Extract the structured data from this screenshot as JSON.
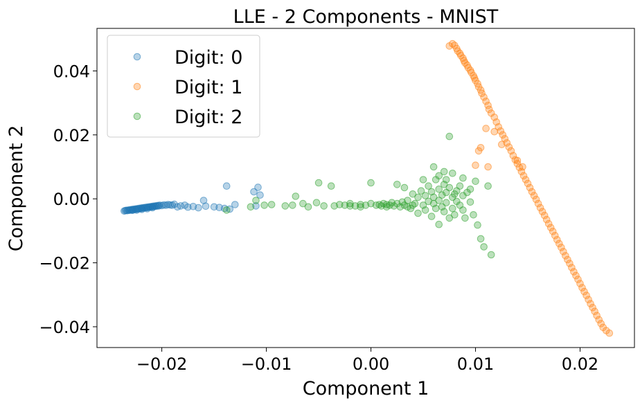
{
  "chart_data": {
    "type": "scatter",
    "title": "LLE - 2 Components - MNIST",
    "xlabel": "Component 1",
    "ylabel": "Component 2",
    "xlim": [
      -0.0262,
      0.0252
    ],
    "ylim": [
      -0.0465,
      0.0533
    ],
    "xticks": [
      -0.02,
      -0.01,
      0.0,
      0.01,
      0.02
    ],
    "xtick_labels": [
      "−0.02",
      "−0.01",
      "0.00",
      "0.01",
      "0.02"
    ],
    "yticks": [
      -0.04,
      -0.02,
      0.0,
      0.02,
      0.04
    ],
    "ytick_labels": [
      "−0.04",
      "−0.02",
      "0.00",
      "0.02",
      "0.04"
    ],
    "grid": false,
    "legend_position": "top-left",
    "series": [
      {
        "name": "Digit: 0",
        "color": "#1f77b4",
        "points": [
          [
            -0.0236,
            -0.0038
          ],
          [
            -0.0235,
            -0.0037
          ],
          [
            -0.0234,
            -0.0036
          ],
          [
            -0.0233,
            -0.0037
          ],
          [
            -0.0232,
            -0.0035
          ],
          [
            -0.0231,
            -0.0036
          ],
          [
            -0.023,
            -0.0034
          ],
          [
            -0.0229,
            -0.0035
          ],
          [
            -0.0228,
            -0.0033
          ],
          [
            -0.0227,
            -0.0034
          ],
          [
            -0.0226,
            -0.0032
          ],
          [
            -0.0225,
            -0.0033
          ],
          [
            -0.0224,
            -0.0031
          ],
          [
            -0.0223,
            -0.0032
          ],
          [
            -0.0222,
            -0.003
          ],
          [
            -0.0221,
            -0.0031
          ],
          [
            -0.022,
            -0.0029
          ],
          [
            -0.0219,
            -0.003
          ],
          [
            -0.0218,
            -0.0028
          ],
          [
            -0.0217,
            -0.0029
          ],
          [
            -0.0216,
            -0.0027
          ],
          [
            -0.0215,
            -0.0028
          ],
          [
            -0.0214,
            -0.0026
          ],
          [
            -0.0213,
            -0.0027
          ],
          [
            -0.0212,
            -0.0025
          ],
          [
            -0.0211,
            -0.0026
          ],
          [
            -0.021,
            -0.0024
          ],
          [
            -0.0209,
            -0.0025
          ],
          [
            -0.0208,
            -0.0023
          ],
          [
            -0.0207,
            -0.0024
          ],
          [
            -0.0206,
            -0.0022
          ],
          [
            -0.0205,
            -0.0023
          ],
          [
            -0.0204,
            -0.0021
          ],
          [
            -0.0203,
            -0.0022
          ],
          [
            -0.0202,
            -0.002
          ],
          [
            -0.02,
            -0.0021
          ],
          [
            -0.0198,
            -0.0019
          ],
          [
            -0.0196,
            -0.002
          ],
          [
            -0.0194,
            -0.0018
          ],
          [
            -0.0192,
            -0.0019
          ],
          [
            -0.019,
            -0.002
          ],
          [
            -0.0188,
            -0.0017
          ],
          [
            -0.0185,
            -0.0025
          ],
          [
            -0.0182,
            -0.0022
          ],
          [
            -0.0178,
            -0.002
          ],
          [
            -0.0175,
            -0.0026
          ],
          [
            -0.017,
            -0.0024
          ],
          [
            -0.0165,
            -0.0028
          ],
          [
            -0.016,
            -0.0005
          ],
          [
            -0.0158,
            -0.0023
          ],
          [
            -0.015,
            -0.0025
          ],
          [
            -0.0145,
            -0.0027
          ],
          [
            -0.014,
            -0.003
          ],
          [
            -0.0138,
            0.004
          ],
          [
            -0.0135,
            -0.0032
          ],
          [
            -0.013,
            -0.0018
          ],
          [
            -0.0112,
            0.0022
          ],
          [
            -0.0108,
            0.0036
          ],
          [
            -0.0106,
            0.0012
          ],
          [
            -0.011,
            -0.0022
          ],
          [
            -0.0228,
            -0.0036
          ],
          [
            -0.0224,
            -0.0035
          ],
          [
            -0.0219,
            -0.0033
          ],
          [
            -0.0214,
            -0.0031
          ],
          [
            -0.0209,
            -0.0028
          ]
        ]
      },
      {
        "name": "Digit: 1",
        "color": "#ff7f0e",
        "points": [
          [
            0.0075,
            0.0478
          ],
          [
            0.0078,
            0.0485
          ],
          [
            0.008,
            0.048
          ],
          [
            0.0082,
            0.047
          ],
          [
            0.0083,
            0.0462
          ],
          [
            0.0085,
            0.0455
          ],
          [
            0.0086,
            0.0448
          ],
          [
            0.0088,
            0.044
          ],
          [
            0.0089,
            0.0432
          ],
          [
            0.009,
            0.0425
          ],
          [
            0.0092,
            0.0418
          ],
          [
            0.0093,
            0.041
          ],
          [
            0.0095,
            0.0402
          ],
          [
            0.0096,
            0.0395
          ],
          [
            0.0098,
            0.0385
          ],
          [
            0.0099,
            0.0378
          ],
          [
            0.01,
            0.037
          ],
          [
            0.0102,
            0.036
          ],
          [
            0.0103,
            0.035
          ],
          [
            0.0105,
            0.034
          ],
          [
            0.0106,
            0.033
          ],
          [
            0.0108,
            0.0318
          ],
          [
            0.011,
            0.0305
          ],
          [
            0.0112,
            0.0292
          ],
          [
            0.0113,
            0.028
          ],
          [
            0.0115,
            0.0268
          ],
          [
            0.0118,
            0.0255
          ],
          [
            0.012,
            0.024
          ],
          [
            0.0122,
            0.0225
          ],
          [
            0.0124,
            0.0212
          ],
          [
            0.0126,
            0.02
          ],
          [
            0.0128,
            0.0188
          ],
          [
            0.013,
            0.0175
          ],
          [
            0.0132,
            0.0162
          ],
          [
            0.0134,
            0.015
          ],
          [
            0.0136,
            0.0135
          ],
          [
            0.0138,
            0.0122
          ],
          [
            0.014,
            0.011
          ],
          [
            0.0142,
            0.0098
          ],
          [
            0.0144,
            0.0085
          ],
          [
            0.0146,
            0.0072
          ],
          [
            0.0148,
            0.006
          ],
          [
            0.015,
            0.0048
          ],
          [
            0.0152,
            0.0035
          ],
          [
            0.0154,
            0.0022
          ],
          [
            0.0156,
            0.001
          ],
          [
            0.0158,
            -0.0002
          ],
          [
            0.016,
            -0.0015
          ],
          [
            0.0162,
            -0.0028
          ],
          [
            0.0164,
            -0.004
          ],
          [
            0.0166,
            -0.0052
          ],
          [
            0.0168,
            -0.0065
          ],
          [
            0.017,
            -0.0078
          ],
          [
            0.0172,
            -0.009
          ],
          [
            0.0174,
            -0.0102
          ],
          [
            0.0176,
            -0.0115
          ],
          [
            0.0178,
            -0.0128
          ],
          [
            0.018,
            -0.014
          ],
          [
            0.0182,
            -0.0152
          ],
          [
            0.0184,
            -0.0165
          ],
          [
            0.0186,
            -0.0178
          ],
          [
            0.0188,
            -0.019
          ],
          [
            0.019,
            -0.0202
          ],
          [
            0.0192,
            -0.0215
          ],
          [
            0.0194,
            -0.0228
          ],
          [
            0.0196,
            -0.024
          ],
          [
            0.0198,
            -0.0252
          ],
          [
            0.02,
            -0.0265
          ],
          [
            0.0202,
            -0.0278
          ],
          [
            0.0204,
            -0.029
          ],
          [
            0.0206,
            -0.0302
          ],
          [
            0.0208,
            -0.0315
          ],
          [
            0.021,
            -0.0328
          ],
          [
            0.0212,
            -0.034
          ],
          [
            0.0214,
            -0.0352
          ],
          [
            0.0216,
            -0.0365
          ],
          [
            0.0218,
            -0.0378
          ],
          [
            0.022,
            -0.039
          ],
          [
            0.0222,
            -0.0402
          ],
          [
            0.0225,
            -0.0412
          ],
          [
            0.0228,
            -0.042
          ],
          [
            0.011,
            0.022
          ],
          [
            0.0105,
            0.016
          ],
          [
            0.0103,
            0.015
          ],
          [
            0.01,
            0.0105
          ],
          [
            0.0112,
            0.01
          ],
          [
            0.0118,
            0.021
          ],
          [
            0.0125,
            0.017
          ],
          [
            0.014,
            0.012
          ],
          [
            0.0145,
            0.01
          ]
        ]
      },
      {
        "name": "Digit: 2",
        "color": "#2ca02c",
        "points": [
          [
            -0.0138,
            -0.0035
          ],
          [
            -0.0115,
            -0.0025
          ],
          [
            -0.011,
            -0.0005
          ],
          [
            -0.0102,
            -0.002
          ],
          [
            -0.0095,
            -0.0018
          ],
          [
            -0.0082,
            -0.0022
          ],
          [
            -0.0075,
            -0.002
          ],
          [
            -0.0072,
            0.0008
          ],
          [
            -0.0065,
            -0.0015
          ],
          [
            -0.006,
            -0.0025
          ],
          [
            -0.0052,
            -0.0012
          ],
          [
            -0.005,
            0.005
          ],
          [
            -0.0045,
            -0.0022
          ],
          [
            -0.0038,
            0.004
          ],
          [
            -0.0035,
            -0.0022
          ],
          [
            -0.003,
            -0.0018
          ],
          [
            -0.0025,
            -0.002
          ],
          [
            -0.002,
            -0.0015
          ],
          [
            -0.0015,
            -0.0022
          ],
          [
            -0.001,
            -0.0018
          ],
          [
            -0.0005,
            -0.002
          ],
          [
            0.0,
            0.005
          ],
          [
            0.0,
            -0.0015
          ],
          [
            0.0005,
            -0.002
          ],
          [
            0.0008,
            -0.0018
          ],
          [
            0.001,
            -0.0022
          ],
          [
            0.0012,
            -0.0015
          ],
          [
            0.0015,
            -0.0018
          ],
          [
            0.0018,
            -0.002
          ],
          [
            0.002,
            -0.0012
          ],
          [
            0.0022,
            -0.0022
          ],
          [
            0.0025,
            0.0045
          ],
          [
            0.0025,
            -0.0015
          ],
          [
            0.0028,
            -0.0025
          ],
          [
            0.003,
            -0.001
          ],
          [
            0.0032,
            0.0035
          ],
          [
            0.0032,
            -0.002
          ],
          [
            0.0035,
            -0.0005
          ],
          [
            0.0038,
            -0.003
          ],
          [
            0.004,
            0.0015
          ],
          [
            0.0042,
            -0.0015
          ],
          [
            0.0045,
            0.0005
          ],
          [
            0.0045,
            -0.0045
          ],
          [
            0.0048,
            0.0025
          ],
          [
            0.005,
            -0.002
          ],
          [
            0.0052,
            0.001
          ],
          [
            0.0052,
            -0.0035
          ],
          [
            0.0055,
            0.004
          ],
          [
            0.0055,
            -0.0008
          ],
          [
            0.0058,
            -0.0055
          ],
          [
            0.0058,
            0.0022
          ],
          [
            0.006,
            0.0005
          ],
          [
            0.006,
            -0.0015
          ],
          [
            0.0062,
            0.006
          ],
          [
            0.0062,
            -0.003
          ],
          [
            0.0065,
            0.003
          ],
          [
            0.0065,
            -0.0005
          ],
          [
            0.0065,
            -0.008
          ],
          [
            0.0068,
            0.0012
          ],
          [
            0.0068,
            -0.0025
          ],
          [
            0.007,
            0.0045
          ],
          [
            0.007,
            -0.004
          ],
          [
            0.0072,
            0.002
          ],
          [
            0.0072,
            -0.0012
          ],
          [
            0.0075,
            0.0195
          ],
          [
            0.0075,
            0.0035
          ],
          [
            0.0075,
            -0.006
          ],
          [
            0.0078,
            0.0005
          ],
          [
            0.0078,
            -0.003
          ],
          [
            0.008,
            0.0015
          ],
          [
            0.008,
            -0.005
          ],
          [
            0.0082,
            0.0025
          ],
          [
            0.0082,
            -0.0008
          ],
          [
            0.0085,
            0.004
          ],
          [
            0.0085,
            -0.002
          ],
          [
            0.0088,
            0.001
          ],
          [
            0.0088,
            -0.0035
          ],
          [
            0.009,
            -0.006
          ],
          [
            0.0092,
            0.002
          ],
          [
            0.0095,
            -0.001
          ],
          [
            0.0098,
            -0.005
          ],
          [
            0.01,
            0.0055
          ],
          [
            0.0102,
            -0.0082
          ],
          [
            0.0105,
            -0.0125
          ],
          [
            0.0108,
            -0.015
          ],
          [
            0.0112,
            0.004
          ],
          [
            0.0115,
            -0.0175
          ],
          [
            0.006,
            0.01
          ],
          [
            0.007,
            0.0085
          ],
          [
            0.0078,
            0.008
          ],
          [
            0.0065,
            0.0072
          ],
          [
            0.005,
            0.006
          ],
          [
            0.0072,
            0.006
          ],
          [
            0.0088,
            0.0065
          ],
          [
            0.0095,
            0.003
          ],
          [
            -0.002,
            -0.0022
          ],
          [
            -0.001,
            -0.0025
          ],
          [
            0.0015,
            -0.0025
          ],
          [
            0.0035,
            -0.0025
          ],
          [
            0.004,
            -0.002
          ]
        ]
      }
    ]
  }
}
